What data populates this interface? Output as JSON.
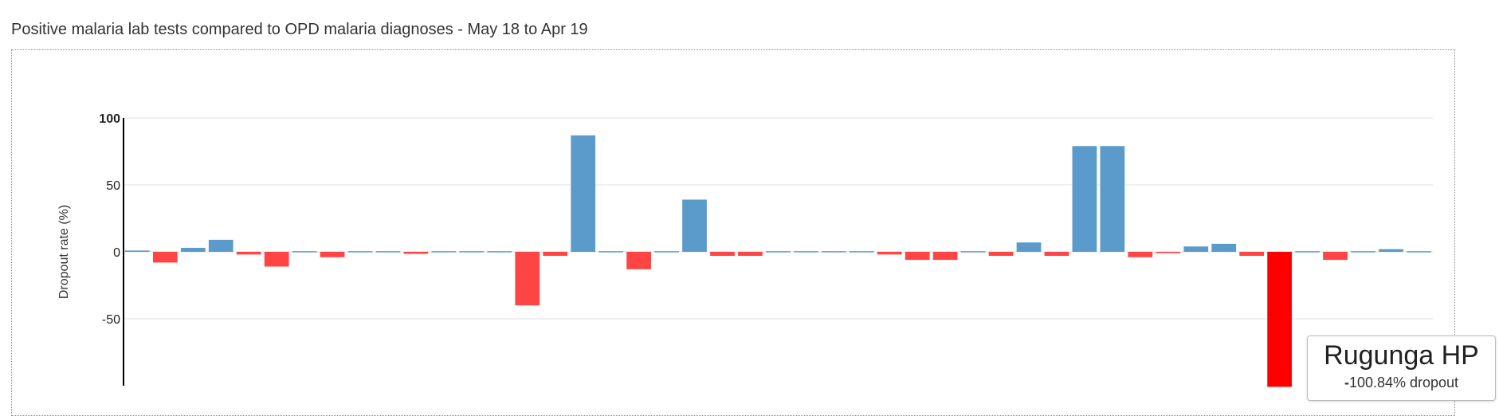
{
  "title": "Positive malaria lab tests compared to OPD malaria diagnoses - May 18 to Apr 19",
  "tooltip": {
    "name": "Rugunga HP",
    "sign": "-",
    "value": "100.84% dropout"
  },
  "colors": {
    "positive": "#5b9bcc",
    "negative": "#ff4444",
    "highlight": "#ff0000",
    "axis": "#000000",
    "grid": "#e0e0e0"
  },
  "chart_data": {
    "type": "bar",
    "ylabel": "Dropout rate (%)",
    "xlabel": "",
    "ylim": [
      -100,
      100
    ],
    "yticks": [
      {
        "value": 100,
        "label": "100"
      },
      {
        "value": 50,
        "label": "50"
      },
      {
        "value": 0,
        "label": "0"
      },
      {
        "value": -50,
        "label": "-50"
      }
    ],
    "grid": true,
    "highlight_index": 41,
    "values": [
      1,
      -8,
      3,
      9,
      -2,
      -11,
      0.5,
      -4,
      0.5,
      0.5,
      -1.5,
      0.5,
      0.5,
      0.5,
      -40,
      -3,
      87,
      0.5,
      -13,
      0.5,
      39,
      -3,
      -3,
      0.5,
      0.5,
      0.5,
      0.5,
      -2,
      -6,
      -6,
      0.5,
      -3,
      7,
      -3,
      79,
      79,
      -4,
      -1,
      4,
      6,
      -3,
      -100.84,
      0.5,
      -6,
      0.5,
      2,
      0.5
    ]
  }
}
